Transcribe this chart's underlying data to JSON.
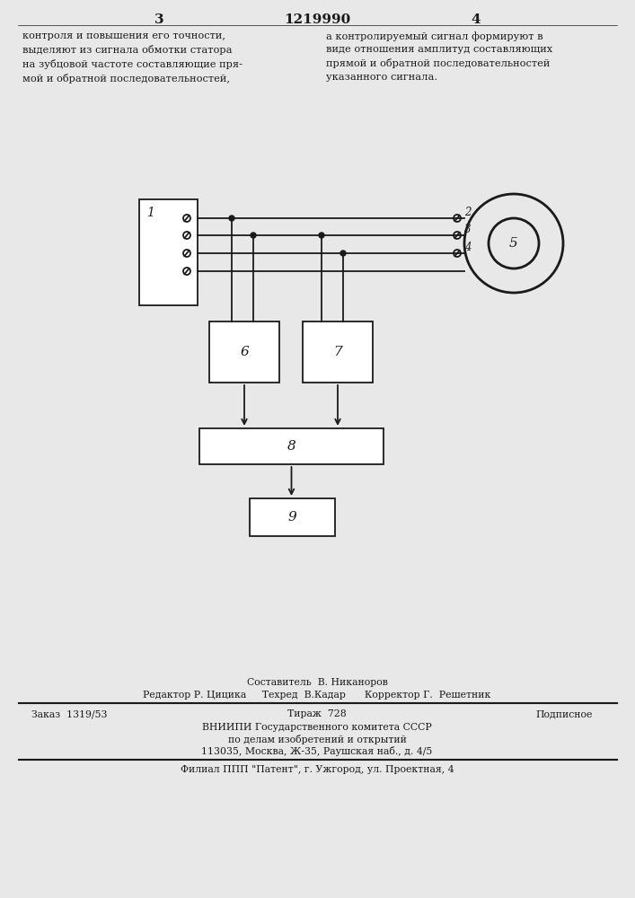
{
  "bg_color": "#e8e8e8",
  "line_color": "#1a1a1a",
  "text_color": "#1a1a1a",
  "page_number_left": "3",
  "patent_number": "1219990",
  "page_number_right": "4",
  "text_left": "контроля и повышения его точности,\nвыделяют из сигнала обмотки статора\nна зубцовой частоте составляющие пря-\nмой и обратной последовательностей,",
  "text_right": "а контролируемый сигнал формируют в\nвиде отношения амплитуд составляющих\nпрямой и обратной последовательностей\nуказанного сигнала.",
  "footer_sestavitel": "Составитель  В. Никаноров",
  "footer_editor_row": "Редактор Р. Цицика     Техред  В.Кадар      Корректор Г.  Решетник",
  "footer_order": "Заказ  1319/53",
  "footer_tirazh": "Тираж  728",
  "footer_podpisnoe": "Подписное",
  "footer_vniipи": "ВНИИПИ Государственного комитета СССР",
  "footer_dela": "по делам изобретений и открытий",
  "footer_addr": "113035, Москва, Ж-35, Раушская наб., д. 4/5",
  "footer_filial": "Филиал ППП \"Патент\", г. Ужгород, ул. Проектная, 4",
  "box1_label": "1",
  "box5_label": "5",
  "box6_label": "6",
  "box7_label": "7",
  "box8_label": "8",
  "box9_label": "9",
  "switch_labels_right": [
    "2",
    "3",
    "4"
  ]
}
